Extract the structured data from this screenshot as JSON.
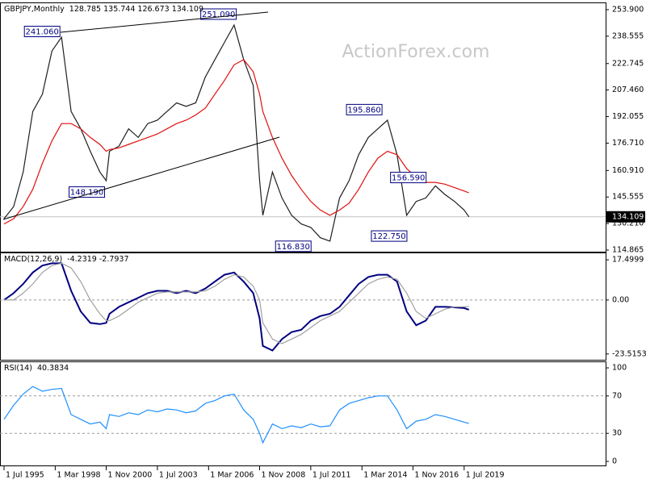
{
  "chart_data": [
    {
      "type": "line",
      "title": "GBPJPY,Monthly",
      "subtitle": "128.785 135.744 126.673 134.109",
      "watermark": "ActionForex.com",
      "x": [
        1995.5,
        1996,
        1996.5,
        1997,
        1997.5,
        1998,
        1998.5,
        1999,
        1999.5,
        2000,
        2000.5,
        2000.83,
        2001,
        2001.5,
        2002,
        2002.5,
        2003,
        2003.5,
        2004,
        2004.5,
        2005,
        2005.5,
        2006,
        2006.5,
        2007,
        2007.5,
        2008,
        2008.5,
        2008.83,
        2009,
        2009.5,
        2010,
        2010.5,
        2011,
        2011.5,
        2012,
        2012.5,
        2013,
        2013.5,
        2014,
        2014.5,
        2015,
        2015.5,
        2016,
        2016.5,
        2017,
        2017.5,
        2018,
        2018.5,
        2019,
        2019.5,
        2019.75
      ],
      "xlim": [
        1995.29,
        2026.88
      ],
      "ylim": [
        113.47,
        257.16
      ],
      "yticks": [
        {
          "value": 253.9,
          "label": "253.900"
        },
        238.555,
        222.745,
        {
          "value": 207.46,
          "label": "207.460"
        },
        192.055,
        {
          "value": 176.71,
          "label": "176.710"
        },
        {
          "value": 160.91,
          "label": "160.910"
        },
        145.555,
        {
          "value": 130.21,
          "label": "130.210"
        },
        114.865
      ],
      "last_price": 134.109,
      "series": [
        {
          "name": "GBPJPY",
          "color": "#1f1f1f",
          "values": [
            133,
            140,
            160,
            195,
            205,
            230,
            238,
            195,
            185,
            172,
            160,
            155,
            172,
            175,
            185,
            180,
            188,
            190,
            195,
            200,
            198,
            200,
            215,
            225,
            235,
            245,
            225,
            210,
            155,
            135,
            160,
            145,
            135,
            130,
            128,
            122,
            120,
            145,
            155,
            170,
            180,
            185,
            190,
            170,
            135,
            143,
            145,
            152,
            147,
            143,
            138,
            134.109
          ]
        },
        {
          "name": "MA",
          "color": "#e01010",
          "values": [
            130,
            133,
            140,
            150,
            165,
            178,
            188,
            188,
            185,
            180,
            176,
            172,
            173,
            174,
            176,
            178,
            180,
            182,
            185,
            188,
            190,
            193,
            197,
            205,
            213,
            222,
            225,
            218,
            205,
            195,
            180,
            168,
            158,
            150,
            143,
            138,
            135,
            138,
            142,
            150,
            160,
            168,
            172,
            170,
            162,
            157,
            154,
            154,
            153,
            151,
            149,
            148
          ]
        }
      ],
      "annotations": [
        {
          "x": 1998.5,
          "value": 241.06,
          "label": "241.060"
        },
        {
          "x": 2007.7,
          "value": 251.09,
          "label": "251.090"
        },
        {
          "x": 2000.83,
          "value": 148.19,
          "label": "148.190"
        },
        {
          "x": 2011.6,
          "value": 116.83,
          "label": "116.830"
        },
        {
          "x": 2015.3,
          "value": 195.86,
          "label": "195.860"
        },
        {
          "x": 2017.6,
          "value": 156.59,
          "label": "156.590"
        },
        {
          "x": 2016.6,
          "value": 122.75,
          "label": "122.750"
        }
      ]
    },
    {
      "type": "line",
      "title": "MACD(12,26,9)",
      "subtitle": "-4.2319 -2.7937",
      "x": [
        1995.5,
        1996,
        1996.5,
        1997,
        1997.5,
        1998,
        1998.5,
        1999,
        1999.5,
        2000,
        2000.5,
        2000.83,
        2001,
        2001.5,
        2002,
        2002.5,
        2003,
        2003.5,
        2004,
        2004.5,
        2005,
        2005.5,
        2006,
        2006.5,
        2007,
        2007.5,
        2008,
        2008.5,
        2008.83,
        2009,
        2009.5,
        2010,
        2010.5,
        2011,
        2011.5,
        2012,
        2012.5,
        2013,
        2013.5,
        2014,
        2014.5,
        2015,
        2015.5,
        2016,
        2016.5,
        2017,
        2017.5,
        2018,
        2018.5,
        2019,
        2019.5,
        2019.75
      ],
      "xlim": [
        1995.29,
        2026.88
      ],
      "ylim": [
        -26.4,
        20
      ],
      "yticks": [
        17.4999,
        {
          "value": 0,
          "label": "0.00"
        },
        -23.5153
      ],
      "reference_lines": [
        0
      ],
      "series": [
        {
          "name": "MACD",
          "color": "#000080",
          "values": [
            0,
            3,
            7,
            12,
            15,
            16,
            16,
            4,
            -5,
            -10,
            -10.5,
            -10,
            -6,
            -3,
            -1,
            1,
            3,
            4,
            4,
            3,
            4,
            3,
            5,
            8,
            11,
            12,
            8,
            3,
            -8,
            -20,
            -22,
            -17,
            -14,
            -13,
            -9,
            -7,
            -6,
            -3,
            2,
            7,
            10,
            11,
            11,
            8,
            -5,
            -11,
            -9,
            -3,
            -3,
            -3.2,
            -3.5,
            -4.2319
          ]
        },
        {
          "name": "Signal",
          "color": "#a0a0a0",
          "values": [
            0,
            0,
            3,
            7,
            12,
            15,
            16,
            14,
            8,
            0,
            -6,
            -9,
            -9,
            -7,
            -4,
            -1,
            1,
            3,
            3.5,
            3.5,
            3.5,
            3.5,
            4,
            6,
            9,
            11,
            10,
            6,
            0,
            -10,
            -17,
            -19,
            -17,
            -15,
            -12,
            -9,
            -7,
            -5,
            -1,
            3,
            7,
            9,
            10,
            9,
            3,
            -5,
            -8,
            -6,
            -4,
            -3,
            -3,
            -2.7937
          ]
        }
      ]
    },
    {
      "type": "line",
      "title": "RSI(14)",
      "subtitle": "40.3834",
      "x": [
        1995.5,
        1996,
        1996.5,
        1997,
        1997.5,
        1998,
        1998.5,
        1999,
        1999.5,
        2000,
        2000.5,
        2000.83,
        2001,
        2001.5,
        2002,
        2002.5,
        2003,
        2003.5,
        2004,
        2004.5,
        2005,
        2005.5,
        2006,
        2006.5,
        2007,
        2007.5,
        2008,
        2008.5,
        2008.83,
        2009,
        2009.5,
        2010,
        2010.5,
        2011,
        2011.5,
        2012,
        2012.5,
        2013,
        2013.5,
        2014,
        2014.5,
        2015,
        2015.5,
        2016,
        2016.5,
        2017,
        2017.5,
        2018,
        2018.5,
        2019,
        2019.5,
        2019.75
      ],
      "xlim": [
        1995.29,
        2026.88
      ],
      "xticks": [
        {
          "value": 1995.5,
          "label": "1 Jul 1995"
        },
        {
          "value": 1998.17,
          "label": "1 Mar 1998"
        },
        {
          "value": 2000.83,
          "label": "1 Nov 2000"
        },
        {
          "value": 2003.5,
          "label": "1 Jul 2003"
        },
        {
          "value": 2006.17,
          "label": "1 Mar 2006"
        },
        {
          "value": 2008.83,
          "label": "1 Nov 2008"
        },
        {
          "value": 2011.5,
          "label": "1 Jul 2011"
        },
        {
          "value": 2014.17,
          "label": "1 Mar 2014"
        },
        {
          "value": 2016.83,
          "label": "1 Nov 2016"
        },
        {
          "value": 2019.5,
          "label": "1 Jul 2019"
        }
      ],
      "ylim": [
        -5.2,
        105.2
      ],
      "yticks": [
        100,
        70,
        30,
        0
      ],
      "reference_lines": [
        70,
        30
      ],
      "series": [
        {
          "name": "RSI",
          "color": "#1e90ff",
          "values": [
            45,
            60,
            72,
            80,
            75,
            77,
            78,
            50,
            45,
            40,
            42,
            35,
            50,
            48,
            52,
            50,
            55,
            53,
            56,
            55,
            52,
            54,
            62,
            65,
            70,
            72,
            55,
            45,
            30,
            20,
            40,
            35,
            38,
            36,
            40,
            37,
            38,
            55,
            62,
            65,
            68,
            70,
            70,
            55,
            35,
            43,
            45,
            50,
            48,
            45,
            42,
            40.3834
          ]
        }
      ]
    }
  ]
}
